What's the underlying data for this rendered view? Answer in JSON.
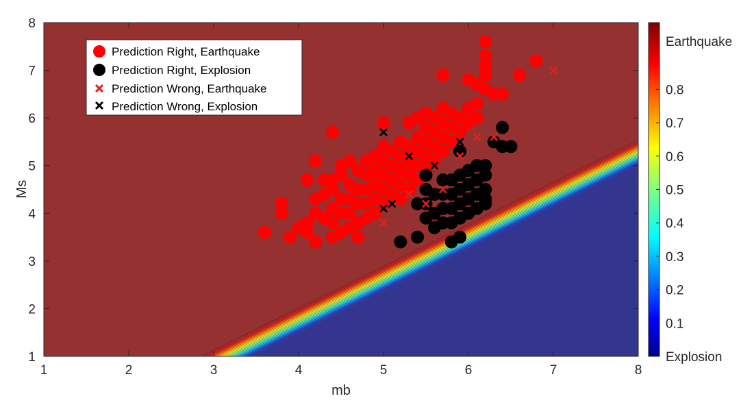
{
  "chart_data": {
    "type": "scatter",
    "xlabel": "mb",
    "ylabel": "Ms",
    "xlim": [
      1,
      8
    ],
    "ylim": [
      1,
      8
    ],
    "xticks": [
      "1",
      "2",
      "3",
      "4",
      "5",
      "6",
      "7",
      "8"
    ],
    "yticks": [
      "1",
      "2",
      "3",
      "4",
      "5",
      "6",
      "7",
      "8"
    ],
    "grid": false,
    "legend_placement": "top-left",
    "background": {
      "type": "filled-contour",
      "description_boundary_mb_at_Ms1": [
        2.85,
        3.0,
        3.15,
        3.3,
        3.45
      ],
      "decision_boundary_slope": 0.88
    },
    "colorbar": {
      "min": 0,
      "max": 1,
      "tick_values": [
        0.1,
        0.2,
        0.3,
        0.4,
        0.5,
        0.6,
        0.7,
        0.8
      ],
      "tick_labels": [
        "0.1",
        "0.2",
        "0.3",
        "0.4",
        "0.5",
        "0.6",
        "0.7",
        "0.8"
      ],
      "top_label": "Earthquake",
      "bottom_label": "Explosion"
    },
    "colors": {
      "earthquake_region": "#953231",
      "explosion_region": "#33358f",
      "earthquake_point": "#ff0000",
      "explosion_point": "#000000",
      "wrong_earthquake_marker": "#e02020",
      "wrong_explosion_marker": "#000000"
    },
    "series": [
      {
        "name": "Prediction Right, Earthquake",
        "marker": "circle",
        "points": [
          [
            3.6,
            3.6
          ],
          [
            3.8,
            4.0
          ],
          [
            3.8,
            4.2
          ],
          [
            3.9,
            3.5
          ],
          [
            4.0,
            3.7
          ],
          [
            4.1,
            3.6
          ],
          [
            4.1,
            3.8
          ],
          [
            4.1,
            4.7
          ],
          [
            4.2,
            3.4
          ],
          [
            4.2,
            4.0
          ],
          [
            4.2,
            4.3
          ],
          [
            4.2,
            5.1
          ],
          [
            4.3,
            3.9
          ],
          [
            4.3,
            4.4
          ],
          [
            4.3,
            4.7
          ],
          [
            4.4,
            3.5
          ],
          [
            4.4,
            3.8
          ],
          [
            4.4,
            4.1
          ],
          [
            4.4,
            4.5
          ],
          [
            4.4,
            4.7
          ],
          [
            4.4,
            5.7
          ],
          [
            4.5,
            3.6
          ],
          [
            4.5,
            4.0
          ],
          [
            4.5,
            4.3
          ],
          [
            4.5,
            4.8
          ],
          [
            4.5,
            5.0
          ],
          [
            4.6,
            3.7
          ],
          [
            4.6,
            4.0
          ],
          [
            4.6,
            4.3
          ],
          [
            4.6,
            4.6
          ],
          [
            4.6,
            5.1
          ],
          [
            4.7,
            3.5
          ],
          [
            4.7,
            3.8
          ],
          [
            4.7,
            4.2
          ],
          [
            4.7,
            4.5
          ],
          [
            4.7,
            4.9
          ],
          [
            4.8,
            3.9
          ],
          [
            4.8,
            4.2
          ],
          [
            4.8,
            4.5
          ],
          [
            4.8,
            4.8
          ],
          [
            4.8,
            5.1
          ],
          [
            4.9,
            4.0
          ],
          [
            4.9,
            4.3
          ],
          [
            4.9,
            4.6
          ],
          [
            4.9,
            4.9
          ],
          [
            4.9,
            5.2
          ],
          [
            5.0,
            4.2
          ],
          [
            5.0,
            4.5
          ],
          [
            5.0,
            4.8
          ],
          [
            5.0,
            5.1
          ],
          [
            5.0,
            5.4
          ],
          [
            5.0,
            5.9
          ],
          [
            5.1,
            4.4
          ],
          [
            5.1,
            4.7
          ],
          [
            5.1,
            5.0
          ],
          [
            5.1,
            5.3
          ],
          [
            5.2,
            4.3
          ],
          [
            5.2,
            4.6
          ],
          [
            5.2,
            4.9
          ],
          [
            5.2,
            5.2
          ],
          [
            5.2,
            5.5
          ],
          [
            5.3,
            4.5
          ],
          [
            5.3,
            4.8
          ],
          [
            5.3,
            5.1
          ],
          [
            5.3,
            5.4
          ],
          [
            5.3,
            5.9
          ],
          [
            5.4,
            4.7
          ],
          [
            5.4,
            5.0
          ],
          [
            5.4,
            5.3
          ],
          [
            5.4,
            5.6
          ],
          [
            5.4,
            6.0
          ],
          [
            5.5,
            4.9
          ],
          [
            5.5,
            5.2
          ],
          [
            5.5,
            5.5
          ],
          [
            5.5,
            5.8
          ],
          [
            5.5,
            6.1
          ],
          [
            5.6,
            5.1
          ],
          [
            5.6,
            5.4
          ],
          [
            5.6,
            5.7
          ],
          [
            5.6,
            6.0
          ],
          [
            5.7,
            5.3
          ],
          [
            5.7,
            5.6
          ],
          [
            5.7,
            5.9
          ],
          [
            5.7,
            6.2
          ],
          [
            5.7,
            6.9
          ],
          [
            5.8,
            5.5
          ],
          [
            5.8,
            5.8
          ],
          [
            5.8,
            6.1
          ],
          [
            5.9,
            5.7
          ],
          [
            5.9,
            6.0
          ],
          [
            6.0,
            5.9
          ],
          [
            6.0,
            6.2
          ],
          [
            6.0,
            6.8
          ],
          [
            6.1,
            6.0
          ],
          [
            6.1,
            6.3
          ],
          [
            6.1,
            6.7
          ],
          [
            6.2,
            6.6
          ],
          [
            6.2,
            6.9
          ],
          [
            6.2,
            7.1
          ],
          [
            6.2,
            7.3
          ],
          [
            6.2,
            7.6
          ],
          [
            6.3,
            6.5
          ],
          [
            6.4,
            6.5
          ],
          [
            6.6,
            6.9
          ],
          [
            6.8,
            7.2
          ]
        ]
      },
      {
        "name": "Prediction Right, Explosion",
        "marker": "circle",
        "points": [
          [
            5.2,
            3.4
          ],
          [
            5.4,
            3.5
          ],
          [
            5.4,
            4.2
          ],
          [
            5.5,
            3.9
          ],
          [
            5.5,
            4.2
          ],
          [
            5.5,
            4.5
          ],
          [
            5.6,
            3.7
          ],
          [
            5.6,
            4.0
          ],
          [
            5.6,
            4.4
          ],
          [
            5.7,
            3.8
          ],
          [
            5.7,
            4.1
          ],
          [
            5.7,
            4.4
          ],
          [
            5.7,
            4.7
          ],
          [
            5.8,
            3.4
          ],
          [
            5.8,
            3.8
          ],
          [
            5.8,
            4.1
          ],
          [
            5.8,
            4.4
          ],
          [
            5.8,
            4.7
          ],
          [
            5.9,
            3.5
          ],
          [
            5.9,
            3.9
          ],
          [
            5.9,
            4.2
          ],
          [
            5.9,
            4.5
          ],
          [
            5.9,
            4.8
          ],
          [
            6.0,
            4.0
          ],
          [
            6.0,
            4.3
          ],
          [
            6.0,
            4.6
          ],
          [
            6.0,
            4.9
          ],
          [
            6.1,
            4.1
          ],
          [
            6.1,
            4.4
          ],
          [
            6.1,
            4.7
          ],
          [
            6.1,
            5.0
          ],
          [
            6.2,
            4.2
          ],
          [
            6.2,
            4.5
          ],
          [
            6.2,
            4.8
          ],
          [
            6.2,
            5.0
          ],
          [
            6.3,
            5.5
          ],
          [
            6.4,
            5.4
          ],
          [
            6.4,
            5.8
          ],
          [
            6.5,
            5.4
          ],
          [
            5.9,
            5.3
          ],
          [
            5.5,
            4.8
          ],
          [
            6.2,
            4.3
          ]
        ]
      },
      {
        "name": "Prediction Wrong, Earthquake",
        "marker": "x",
        "points": [
          [
            5.0,
            3.8
          ],
          [
            5.3,
            4.4
          ],
          [
            5.5,
            4.2
          ],
          [
            5.7,
            4.5
          ],
          [
            5.9,
            5.2
          ],
          [
            6.1,
            5.6
          ],
          [
            6.3,
            5.6
          ],
          [
            7.0,
            7.0
          ]
        ]
      },
      {
        "name": "Prediction Wrong, Explosion",
        "marker": "x",
        "points": [
          [
            5.0,
            4.1
          ],
          [
            5.0,
            5.7
          ],
          [
            5.1,
            4.2
          ],
          [
            5.3,
            5.2
          ],
          [
            5.5,
            4.8
          ],
          [
            5.6,
            5.0
          ],
          [
            5.9,
            5.5
          ]
        ]
      }
    ]
  }
}
